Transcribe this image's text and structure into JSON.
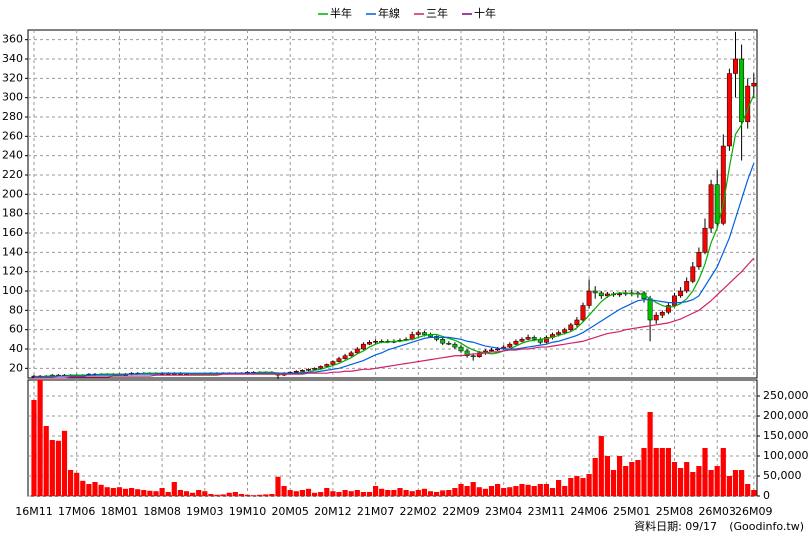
{
  "chart_data": [
    {
      "type": "candlestick",
      "categories": [
        "16M11",
        null,
        null,
        null,
        null,
        null,
        null,
        "17M06",
        null,
        null,
        null,
        null,
        null,
        null,
        "18M01",
        null,
        null,
        null,
        null,
        null,
        null,
        "18M08",
        null,
        null,
        null,
        null,
        null,
        null,
        "19M03",
        null,
        null,
        null,
        null,
        null,
        null,
        "19M10",
        null,
        null,
        null,
        null,
        null,
        null,
        "20M05",
        null,
        null,
        null,
        null,
        null,
        null,
        "20M12",
        null,
        null,
        null,
        null,
        null,
        null,
        "21M07",
        null,
        null,
        null,
        null,
        null,
        null,
        "22M02",
        null,
        null,
        null,
        null,
        null,
        null,
        "22M09",
        null,
        null,
        null,
        null,
        null,
        null,
        "23M04",
        null,
        null,
        null,
        null,
        null,
        null,
        "23M11",
        null,
        null,
        null,
        null,
        null,
        null,
        "24M06",
        null,
        null,
        null,
        null,
        null,
        null,
        "25M01",
        null,
        null,
        null,
        null,
        null,
        null,
        "25M08",
        null,
        null,
        null,
        null,
        null,
        null,
        "26M03",
        null,
        null,
        null,
        null,
        null,
        "26M09"
      ],
      "open": [
        11,
        12,
        12,
        12,
        13,
        13,
        13,
        13,
        13,
        13,
        14,
        14,
        14,
        14,
        14,
        14,
        14,
        15,
        15,
        15,
        15,
        15,
        15,
        15,
        15,
        14,
        14,
        14,
        14,
        14,
        15,
        15,
        15,
        15,
        15,
        15,
        16,
        16,
        16,
        16,
        15,
        13,
        15,
        16,
        17,
        18,
        19,
        20,
        22,
        24,
        27,
        30,
        33,
        36,
        40,
        45,
        47,
        48,
        48,
        47,
        48,
        49,
        50,
        55,
        57,
        55,
        53,
        50,
        46,
        45,
        42,
        38,
        33,
        32,
        36,
        38,
        39,
        40,
        42,
        45,
        48,
        50,
        52,
        50,
        47,
        52,
        55,
        57,
        60,
        65,
        70,
        85,
        100,
        98,
        95,
        97,
        96,
        97,
        98,
        97,
        98,
        92,
        70,
        75,
        78,
        85,
        95,
        100,
        110,
        125,
        140,
        165,
        210,
        170,
        250,
        325,
        340,
        275,
        312
      ],
      "high": [
        13,
        13,
        13,
        14,
        14,
        14,
        14,
        14,
        14,
        15,
        15,
        15,
        15,
        15,
        15,
        15,
        16,
        16,
        16,
        16,
        16,
        16,
        16,
        16,
        16,
        15,
        15,
        15,
        15,
        16,
        16,
        16,
        16,
        16,
        16,
        17,
        17,
        17,
        17,
        17,
        16,
        16,
        17,
        18,
        19,
        20,
        21,
        23,
        25,
        28,
        32,
        35,
        38,
        42,
        47,
        49,
        50,
        50,
        50,
        50,
        51,
        52,
        58,
        59,
        59,
        57,
        54,
        52,
        48,
        47,
        44,
        40,
        35,
        38,
        40,
        41,
        42,
        44,
        47,
        50,
        52,
        55,
        54,
        52,
        54,
        57,
        59,
        62,
        67,
        73,
        88,
        112,
        105,
        100,
        99,
        99,
        99,
        101,
        101,
        100,
        100,
        95,
        78,
        80,
        88,
        98,
        104,
        114,
        130,
        145,
        175,
        215,
        225,
        262,
        330,
        368,
        355,
        320,
        325
      ],
      "low": [
        10,
        11,
        11,
        11,
        12,
        12,
        12,
        12,
        12,
        12,
        13,
        13,
        13,
        13,
        13,
        13,
        13,
        14,
        14,
        14,
        14,
        14,
        14,
        14,
        13,
        13,
        13,
        13,
        13,
        13,
        14,
        14,
        14,
        14,
        14,
        14,
        15,
        15,
        15,
        14,
        9,
        12,
        14,
        15,
        16,
        17,
        18,
        19,
        21,
        23,
        26,
        29,
        32,
        35,
        39,
        44,
        45,
        46,
        46,
        46,
        47,
        48,
        49,
        53,
        53,
        52,
        48,
        44,
        44,
        40,
        36,
        31,
        28,
        31,
        34,
        37,
        38,
        39,
        41,
        44,
        47,
        49,
        48,
        45,
        46,
        50,
        53,
        55,
        58,
        63,
        68,
        82,
        92,
        92,
        93,
        94,
        94,
        95,
        95,
        93,
        88,
        48,
        66,
        72,
        76,
        83,
        93,
        98,
        108,
        122,
        138,
        160,
        165,
        168,
        245,
        300,
        235,
        268,
        300
      ],
      "close": [
        12,
        12,
        12,
        13,
        13,
        13,
        13,
        13,
        13,
        14,
        14,
        14,
        14,
        14,
        14,
        14,
        15,
        15,
        15,
        15,
        15,
        15,
        15,
        15,
        14,
        14,
        14,
        14,
        14,
        15,
        15,
        15,
        15,
        15,
        15,
        16,
        16,
        16,
        16,
        15,
        13,
        15,
        16,
        17,
        18,
        19,
        20,
        22,
        24,
        27,
        30,
        33,
        36,
        40,
        45,
        47,
        48,
        48,
        47,
        48,
        49,
        50,
        55,
        57,
        55,
        53,
        50,
        46,
        45,
        42,
        38,
        33,
        32,
        36,
        38,
        39,
        40,
        42,
        45,
        48,
        50,
        52,
        50,
        47,
        52,
        55,
        57,
        60,
        65,
        70,
        85,
        100,
        98,
        95,
        97,
        96,
        97,
        98,
        97,
        98,
        92,
        70,
        75,
        78,
        85,
        95,
        100,
        110,
        125,
        140,
        165,
        210,
        170,
        250,
        325,
        340,
        275,
        312,
        315
      ],
      "up_color": "#ff0000",
      "down_color": "#00c000",
      "series": [
        {
          "name": "半年",
          "color": "#00b000",
          "values": [
            11,
            11,
            12,
            12,
            12,
            12,
            13,
            13,
            13,
            13,
            13,
            14,
            14,
            14,
            14,
            14,
            14,
            14,
            15,
            15,
            15,
            15,
            15,
            15,
            15,
            15,
            14,
            14,
            14,
            14,
            14,
            15,
            15,
            15,
            15,
            15,
            15,
            16,
            16,
            16,
            15,
            15,
            15,
            15,
            16,
            16,
            18,
            19,
            21,
            23,
            25,
            28,
            31,
            35,
            38,
            42,
            45,
            47,
            47,
            48,
            48,
            49,
            50,
            52,
            54,
            55,
            55,
            53,
            51,
            49,
            46,
            42,
            39,
            37,
            36,
            35,
            36,
            38,
            40,
            43,
            46,
            48,
            49,
            50,
            51,
            52,
            54,
            56,
            58,
            62,
            68,
            75,
            82,
            89,
            94,
            97,
            98,
            98,
            97,
            97,
            96,
            92,
            88,
            85,
            83,
            84,
            87,
            92,
            100,
            112,
            128,
            150,
            165,
            190,
            228,
            262,
            272,
            288,
            303
          ]
        },
        {
          "name": "年線",
          "color": "#0060e0",
          "values": [
            11,
            11,
            11,
            11,
            12,
            12,
            12,
            12,
            12,
            13,
            13,
            13,
            13,
            13,
            13,
            14,
            14,
            14,
            14,
            14,
            14,
            15,
            15,
            15,
            15,
            15,
            15,
            15,
            15,
            15,
            15,
            15,
            15,
            15,
            15,
            15,
            15,
            15,
            15,
            15,
            15,
            15,
            15,
            15,
            15,
            16,
            16,
            17,
            18,
            19,
            20,
            22,
            24,
            26,
            28,
            31,
            34,
            36,
            39,
            41,
            43,
            45,
            47,
            49,
            51,
            52,
            52,
            52,
            52,
            51,
            50,
            48,
            47,
            45,
            43,
            42,
            41,
            40,
            40,
            40,
            41,
            42,
            43,
            44,
            45,
            47,
            48,
            50,
            52,
            54,
            57,
            61,
            65,
            69,
            73,
            77,
            81,
            84,
            87,
            90,
            91,
            91,
            90,
            89,
            88,
            88,
            88,
            89,
            91,
            95,
            105,
            115,
            125,
            140,
            155,
            175,
            195,
            215,
            232
          ]
        },
        {
          "name": "三年",
          "color": "#d0206a",
          "values": [
            10,
            10,
            10,
            10,
            10,
            10,
            11,
            11,
            11,
            11,
            11,
            11,
            11,
            12,
            12,
            12,
            12,
            12,
            12,
            12,
            13,
            13,
            13,
            13,
            13,
            13,
            13,
            13,
            13,
            13,
            13,
            14,
            14,
            14,
            14,
            14,
            14,
            14,
            14,
            14,
            14,
            14,
            14,
            14,
            14,
            15,
            15,
            15,
            15,
            16,
            16,
            17,
            17,
            18,
            19,
            19,
            20,
            21,
            22,
            23,
            24,
            25,
            26,
            27,
            28,
            29,
            30,
            31,
            32,
            33,
            33,
            34,
            35,
            35,
            36,
            37,
            37,
            38,
            39,
            39,
            40,
            40,
            41,
            42,
            42,
            43,
            44,
            45,
            46,
            47,
            48,
            50,
            52,
            54,
            56,
            57,
            58,
            60,
            61,
            62,
            63,
            64,
            65,
            66,
            67,
            69,
            71,
            74,
            77,
            80,
            85,
            90,
            96,
            102,
            108,
            114,
            120,
            127,
            134
          ]
        },
        {
          "name": "十年",
          "color": "#800080",
          "values": [
            null,
            null,
            null,
            null,
            null,
            null,
            null,
            null,
            null,
            null,
            null,
            null,
            null,
            null,
            null,
            null,
            null,
            null,
            null,
            null,
            null,
            null,
            null,
            null,
            null,
            null,
            null,
            null,
            null,
            null,
            null,
            null,
            null,
            null,
            null,
            null,
            null,
            null,
            null,
            null,
            null,
            null,
            null,
            null,
            null,
            null,
            null,
            null,
            null,
            null,
            null,
            null,
            null,
            null,
            null,
            null,
            null,
            null,
            null,
            null,
            null,
            null,
            null,
            null,
            null,
            null,
            null,
            null,
            null,
            null,
            null,
            null,
            null,
            null,
            null,
            null,
            null,
            null,
            null,
            null,
            null,
            null,
            null,
            null,
            null,
            null,
            null,
            null,
            null,
            null,
            null,
            null,
            null,
            null,
            null,
            null,
            null,
            null,
            null,
            null,
            null,
            null,
            null,
            null,
            null,
            null,
            null,
            null,
            null,
            null,
            null,
            null,
            null,
            null,
            null,
            null,
            null,
            null,
            null
          ]
        }
      ],
      "ylim": [
        10,
        370
      ],
      "yticks": [
        20,
        40,
        60,
        80,
        100,
        120,
        140,
        160,
        180,
        200,
        220,
        240,
        260,
        280,
        300,
        320,
        340,
        360
      ],
      "grid": true
    },
    {
      "type": "bar",
      "color": "#ff0000",
      "values": [
        240000,
        295000,
        175000,
        140000,
        138000,
        163000,
        65000,
        58000,
        38000,
        30000,
        35000,
        28000,
        22000,
        20000,
        22000,
        18000,
        20000,
        17000,
        15000,
        13000,
        12000,
        20000,
        10000,
        35000,
        15000,
        12000,
        8000,
        15000,
        12000,
        5000,
        3000,
        4000,
        8000,
        10000,
        5000,
        3000,
        2000,
        3000,
        4000,
        5000,
        48000,
        25000,
        15000,
        12000,
        15000,
        18000,
        8000,
        10000,
        20000,
        12000,
        10000,
        15000,
        12000,
        15000,
        10000,
        10000,
        25000,
        18000,
        15000,
        15000,
        20000,
        15000,
        12000,
        15000,
        18000,
        12000,
        10000,
        14000,
        15000,
        20000,
        30000,
        25000,
        35000,
        22000,
        18000,
        25000,
        30000,
        20000,
        22000,
        25000,
        30000,
        28000,
        25000,
        30000,
        30000,
        20000,
        40000,
        25000,
        45000,
        50000,
        45000,
        55000,
        95000,
        150000,
        100000,
        65000,
        100000,
        75000,
        85000,
        90000,
        120000,
        210000,
        120000,
        120000,
        120000,
        85000,
        70000,
        85000,
        60000,
        75000,
        120000,
        65000,
        75000,
        120000,
        50000,
        65000,
        65000,
        30000,
        15000
      ],
      "ylim": [
        0,
        290000
      ],
      "yticks": [
        0,
        {
          "value": 50000,
          "label": "50,000"
        },
        {
          "value": 100000,
          "label": "100,000"
        },
        {
          "value": 150000,
          "label": "150,000"
        },
        {
          "value": 200000,
          "label": "200,000"
        },
        {
          "value": 250000,
          "label": "250,000"
        }
      ],
      "grid": true
    }
  ],
  "footer": {
    "date": "資料日期: 09/17",
    "source": "(Goodinfo.tw)"
  }
}
